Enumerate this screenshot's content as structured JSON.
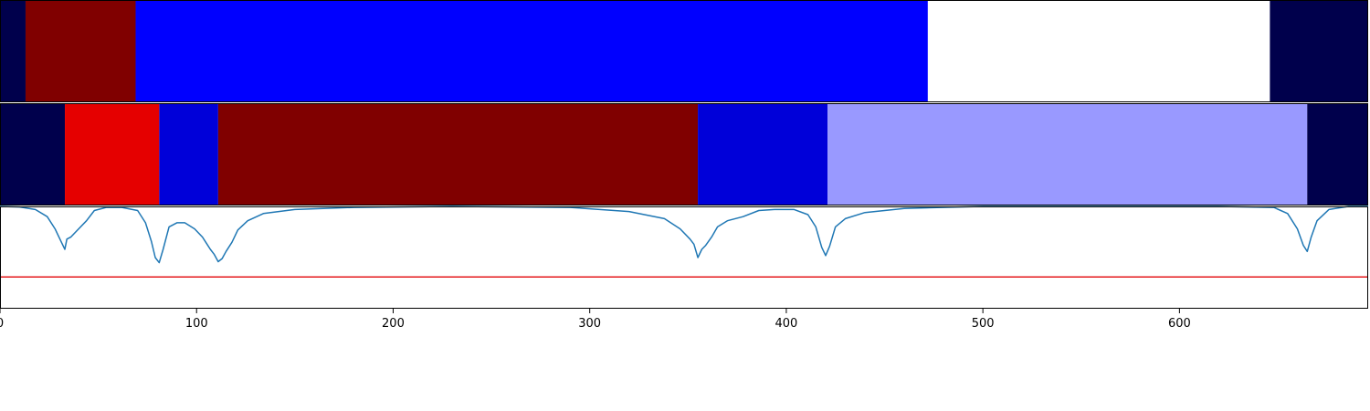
{
  "chart_data": [
    {
      "type": "heatmap",
      "track": "top",
      "segments": [
        {
          "start": 0,
          "end": 13,
          "color": "#00004c"
        },
        {
          "start": 13,
          "end": 69,
          "color": "#800000"
        },
        {
          "start": 69,
          "end": 472,
          "color": "#0000ff"
        },
        {
          "start": 472,
          "end": 646,
          "color": "#ffffff"
        },
        {
          "start": 646,
          "end": 696,
          "color": "#00004c"
        }
      ]
    },
    {
      "type": "heatmap",
      "track": "middle",
      "segments": [
        {
          "start": 0,
          "end": 33,
          "color": "#00004c"
        },
        {
          "start": 33,
          "end": 81,
          "color": "#e50000"
        },
        {
          "start": 81,
          "end": 111,
          "color": "#0000d9"
        },
        {
          "start": 111,
          "end": 355,
          "color": "#800000"
        },
        {
          "start": 355,
          "end": 421,
          "color": "#0000d9"
        },
        {
          "start": 421,
          "end": 665,
          "color": "#9999ff"
        },
        {
          "start": 665,
          "end": 696,
          "color": "#00004c"
        }
      ]
    },
    {
      "type": "line",
      "track": "bottom",
      "xlim": [
        0,
        696
      ],
      "ylim": [
        0,
        1
      ],
      "xticks": [
        0,
        100,
        200,
        300,
        400,
        500,
        600
      ],
      "threshold": {
        "value": 0.31,
        "color": "#e41a1c"
      },
      "series": [
        {
          "color": "#1f77b4",
          "x": [
            0,
            10,
            18,
            24,
            28,
            31,
            33,
            34,
            36,
            40,
            44,
            48,
            54,
            62,
            70,
            74,
            77,
            79,
            81,
            83,
            86,
            90,
            94,
            99,
            101,
            103,
            105,
            107,
            109,
            111,
            113,
            115,
            118,
            121,
            126,
            134,
            150,
            180,
            230,
            290,
            320,
            338,
            346,
            351,
            353,
            355,
            357,
            359,
            362,
            365,
            370,
            378,
            386,
            394,
            404,
            411,
            415,
            418,
            420,
            422,
            425,
            430,
            440,
            460,
            500,
            560,
            620,
            648,
            655,
            660,
            663,
            665,
            667,
            670,
            676,
            686,
            696
          ],
          "y": [
            1.0,
            0.995,
            0.97,
            0.9,
            0.78,
            0.66,
            0.58,
            0.68,
            0.7,
            0.78,
            0.86,
            0.96,
            0.99,
            0.99,
            0.96,
            0.84,
            0.66,
            0.5,
            0.45,
            0.58,
            0.8,
            0.84,
            0.84,
            0.78,
            0.74,
            0.7,
            0.64,
            0.58,
            0.53,
            0.46,
            0.49,
            0.56,
            0.65,
            0.77,
            0.86,
            0.93,
            0.97,
            0.99,
            1.0,
            0.99,
            0.95,
            0.88,
            0.78,
            0.68,
            0.63,
            0.5,
            0.58,
            0.62,
            0.7,
            0.8,
            0.86,
            0.9,
            0.96,
            0.97,
            0.97,
            0.92,
            0.8,
            0.6,
            0.52,
            0.61,
            0.8,
            0.88,
            0.94,
            0.98,
            1.0,
            1.0,
            1.0,
            0.99,
            0.93,
            0.78,
            0.62,
            0.56,
            0.7,
            0.86,
            0.97,
            1.0,
            1.0
          ]
        }
      ]
    }
  ]
}
